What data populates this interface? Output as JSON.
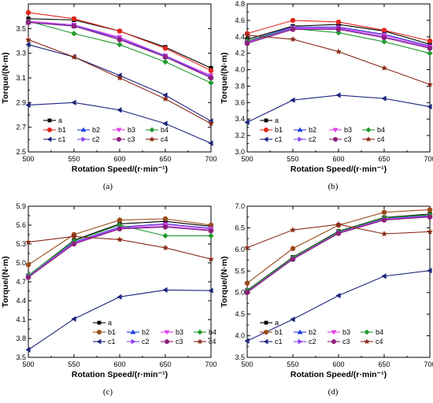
{
  "chart_data": [
    {
      "type": "line",
      "caption": "(a)",
      "xlabel": "Rotation Speed/(r·min⁻¹)",
      "ylabel": "Torque/(N·m)",
      "x": [
        500,
        550,
        600,
        650,
        700
      ],
      "xlim": [
        500,
        700
      ],
      "ylim": [
        2.5,
        3.7
      ],
      "yticks": [
        "2.5",
        "2.7",
        "2.9",
        "3.1",
        "3.3",
        "3.5"
      ],
      "xticks": [
        "500",
        "550",
        "600",
        "650",
        "700"
      ],
      "legend": "bottom-left",
      "series": [
        {
          "name": "a",
          "values": [
            3.58,
            3.57,
            3.48,
            3.35,
            3.18
          ]
        },
        {
          "name": "b1",
          "values": [
            3.63,
            3.58,
            3.48,
            3.34,
            3.16
          ]
        },
        {
          "name": "b2",
          "values": [
            3.55,
            3.52,
            3.42,
            3.27,
            3.11
          ]
        },
        {
          "name": "b3",
          "values": [
            3.56,
            3.53,
            3.43,
            3.28,
            3.12
          ]
        },
        {
          "name": "b4",
          "values": [
            3.56,
            3.46,
            3.37,
            3.23,
            3.06
          ]
        },
        {
          "name": "c1",
          "values": [
            3.37,
            3.27,
            3.12,
            2.96,
            2.75
          ]
        },
        {
          "name": "c2",
          "values": [
            3.55,
            3.53,
            3.42,
            3.28,
            3.11
          ]
        },
        {
          "name": "c3",
          "values": [
            3.55,
            3.52,
            3.41,
            3.27,
            3.1
          ]
        },
        {
          "name": "c4",
          "values": [
            3.41,
            3.27,
            3.1,
            2.93,
            2.73
          ]
        },
        {
          "name": "",
          "color": "#1a237e",
          "values": [
            2.88,
            2.9,
            2.84,
            2.73,
            2.57
          ]
        }
      ]
    },
    {
      "type": "line",
      "caption": "(b)",
      "xlabel": "Rotation Speed/(r·min⁻¹)",
      "ylabel": "Torque/(N·m)",
      "x": [
        500,
        550,
        600,
        650,
        700
      ],
      "xlim": [
        500,
        700
      ],
      "ylim": [
        3.0,
        4.8
      ],
      "yticks": [
        "3.0",
        "3.2",
        "3.4",
        "3.6",
        "3.8",
        "4.0",
        "4.2",
        "4.4",
        "4.6",
        "4.8"
      ],
      "xticks": [
        "500",
        "550",
        "600",
        "650",
        "700"
      ],
      "legend": "bottom-left",
      "series": [
        {
          "name": "a",
          "values": [
            4.37,
            4.53,
            4.55,
            4.47,
            4.31
          ]
        },
        {
          "name": "b1",
          "values": [
            4.44,
            4.6,
            4.58,
            4.48,
            4.35
          ]
        },
        {
          "name": "b2",
          "values": [
            4.35,
            4.52,
            4.52,
            4.43,
            4.29
          ]
        },
        {
          "name": "b3",
          "values": [
            4.34,
            4.51,
            4.51,
            4.42,
            4.28
          ]
        },
        {
          "name": "b4",
          "values": [
            4.35,
            4.5,
            4.45,
            4.34,
            4.2
          ]
        },
        {
          "name": "c1",
          "values": [
            3.36,
            3.63,
            3.69,
            3.65,
            3.55
          ]
        },
        {
          "name": "c2",
          "values": [
            4.33,
            4.5,
            4.5,
            4.4,
            4.27
          ]
        },
        {
          "name": "c3",
          "values": [
            4.32,
            4.49,
            4.49,
            4.39,
            4.26
          ]
        },
        {
          "name": "c4",
          "values": [
            4.42,
            4.37,
            4.22,
            4.02,
            3.82
          ]
        }
      ]
    },
    {
      "type": "line",
      "caption": "(c)",
      "xlabel": "Rotation Speed/(r·min⁻¹)",
      "ylabel": "Torque/(N·m)",
      "x": [
        500,
        550,
        600,
        650,
        700
      ],
      "xlim": [
        500,
        700
      ],
      "ylim": [
        3.5,
        5.9
      ],
      "yticks": [
        "3.5",
        "3.8",
        "4.1",
        "4.4",
        "4.7",
        "5.0",
        "5.3",
        "5.6",
        "5.9"
      ],
      "xticks": [
        "500",
        "550",
        "600",
        "650",
        "700"
      ],
      "legend": "center",
      "series": [
        {
          "name": "a",
          "values": [
            4.8,
            5.36,
            5.62,
            5.66,
            5.58
          ]
        },
        {
          "name": "b1",
          "values": [
            4.97,
            5.45,
            5.68,
            5.7,
            5.6
          ]
        },
        {
          "name": "b2",
          "values": [
            4.8,
            5.33,
            5.57,
            5.62,
            5.55
          ]
        },
        {
          "name": "b3",
          "values": [
            4.79,
            5.32,
            5.56,
            5.61,
            5.54
          ]
        },
        {
          "name": "b4",
          "values": [
            4.8,
            5.35,
            5.6,
            5.43,
            5.43
          ]
        },
        {
          "name": "c1",
          "values": [
            3.62,
            4.11,
            4.46,
            4.57,
            4.56
          ]
        },
        {
          "name": "c2",
          "values": [
            4.78,
            5.31,
            5.55,
            5.58,
            5.52
          ]
        },
        {
          "name": "c3",
          "values": [
            4.77,
            5.3,
            5.54,
            5.57,
            5.51
          ]
        },
        {
          "name": "c4",
          "values": [
            5.33,
            5.42,
            5.37,
            5.24,
            5.06
          ]
        }
      ]
    },
    {
      "type": "line",
      "caption": "(d)",
      "xlabel": "Rotation Speed/(r·min⁻¹)",
      "ylabel": "Torque/(N·m)",
      "x": [
        500,
        550,
        600,
        650,
        700
      ],
      "xlim": [
        500,
        700
      ],
      "ylim": [
        3.5,
        7.0
      ],
      "yticks": [
        "3.5",
        "4.0",
        "4.5",
        "5.0",
        "5.5",
        "6.0",
        "6.5",
        "7.0"
      ],
      "xticks": [
        "500",
        "550",
        "600",
        "650",
        "700"
      ],
      "legend": "center",
      "series": [
        {
          "name": "a",
          "values": [
            5.05,
            5.82,
            6.42,
            6.74,
            6.82
          ]
        },
        {
          "name": "b1",
          "values": [
            5.22,
            6.02,
            6.56,
            6.86,
            6.92
          ]
        },
        {
          "name": "b2",
          "values": [
            5.03,
            5.8,
            6.4,
            6.71,
            6.78
          ]
        },
        {
          "name": "b3",
          "values": [
            5.02,
            5.79,
            6.39,
            6.7,
            6.77
          ]
        },
        {
          "name": "b4",
          "values": [
            5.04,
            5.81,
            6.41,
            6.73,
            6.8
          ]
        },
        {
          "name": "c1",
          "values": [
            3.88,
            4.38,
            4.93,
            5.38,
            5.51
          ]
        },
        {
          "name": "c2",
          "values": [
            5.01,
            5.78,
            6.38,
            6.69,
            6.76
          ]
        },
        {
          "name": "c3",
          "values": [
            5.0,
            5.77,
            6.37,
            6.68,
            6.75
          ]
        },
        {
          "name": "c4",
          "values": [
            6.04,
            6.45,
            6.58,
            6.36,
            6.41
          ]
        }
      ]
    }
  ],
  "series_styles": {
    "a": {
      "color": "#000000",
      "marker": "square"
    },
    "b1": {
      "color": "#e3261c",
      "marker": "circle"
    },
    "b2": {
      "color": "#1a3fe0",
      "marker": "triangle-up"
    },
    "b3": {
      "color": "#e23ee6",
      "marker": "triangle-down"
    },
    "b4": {
      "color": "#1f9a2e",
      "marker": "diamond"
    },
    "c1": {
      "color": "#1a237e",
      "marker": "triangle-left"
    },
    "c2": {
      "color": "#8b3ff0",
      "marker": "triangle-right"
    },
    "c3": {
      "color": "#8e1f7a",
      "marker": "circle"
    },
    "c4": {
      "color": "#8b2a1a",
      "marker": "star"
    }
  },
  "panel_c_d_b1_color": "#9a4a16"
}
